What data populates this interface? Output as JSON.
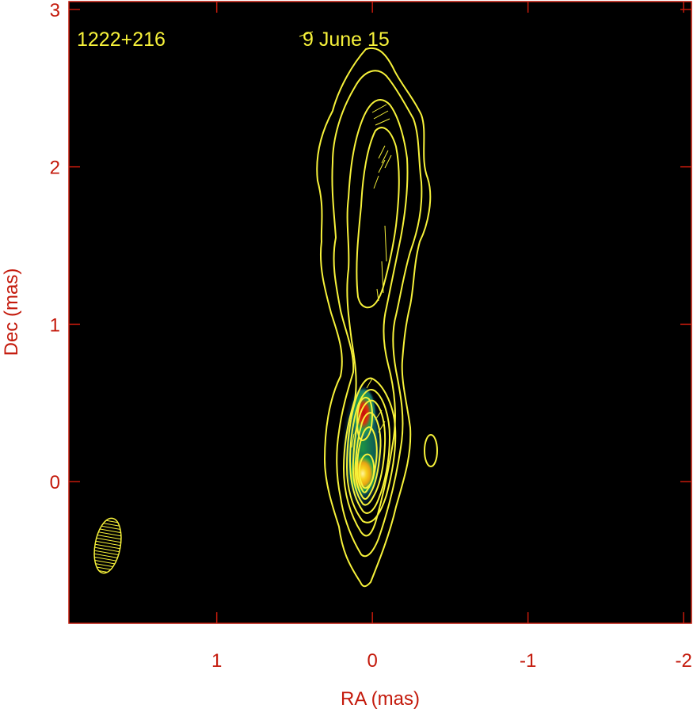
{
  "chart_data": {
    "type": "heatmap",
    "xlabel": "RA (mas)",
    "ylabel": "Dec (mas)",
    "x_reversed": true,
    "xlim": [
      1.95,
      -2.05
    ],
    "ylim": [
      -0.9,
      3.05
    ],
    "x_ticks": [
      1,
      0,
      -1,
      -2
    ],
    "x_tick_labels": [
      "1",
      "0",
      "-1",
      "-2"
    ],
    "y_ticks": [
      0,
      1,
      2,
      3
    ],
    "y_tick_labels": [
      "0",
      "1",
      "2",
      "3"
    ],
    "annotations": {
      "source": "1222+216",
      "epoch": "9 June 15"
    },
    "background_color": "#000000",
    "axis_color": "#c41a0c",
    "contour_color": "#f7f23a",
    "intensity_peaks": [
      {
        "ra": 0.04,
        "dec": 0.05,
        "level": 1.0
      },
      {
        "ra": 0.03,
        "dec": 0.45,
        "level": 0.75
      }
    ],
    "beam": {
      "ra": 1.68,
      "dec": -0.4,
      "major_mas": 0.34,
      "minor_mas": 0.18,
      "pa_deg": 10
    }
  }
}
